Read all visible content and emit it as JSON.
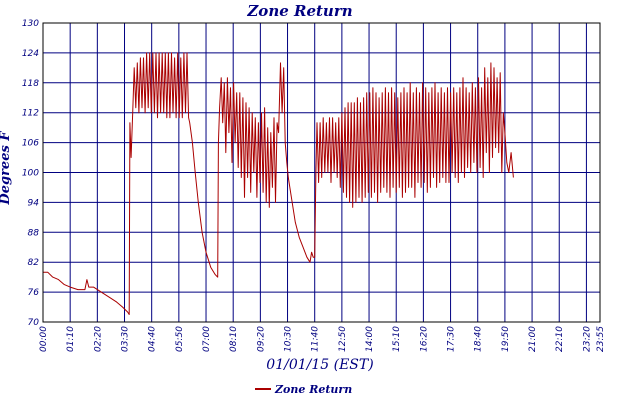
{
  "chart_data": {
    "type": "line",
    "title": "Zone Return",
    "xlabel": "01/01/15 (EST)",
    "ylabel": "Degrees F",
    "ylim": [
      70,
      130
    ],
    "xlim_minutes": [
      0,
      1435
    ],
    "y_ticks": [
      "70",
      "76",
      "82",
      "88",
      "94",
      "100",
      "106",
      "112",
      "118",
      "124",
      "130"
    ],
    "x_ticks": [
      "00:00",
      "01:10",
      "02:20",
      "03:30",
      "04:40",
      "05:50",
      "07:00",
      "08:10",
      "09:20",
      "10:30",
      "11:40",
      "12:50",
      "14:00",
      "15:10",
      "16:20",
      "17:30",
      "18:40",
      "19:50",
      "21:00",
      "22:10",
      "23:20",
      "23:55"
    ],
    "grid": true,
    "legend_position": "bottom-center",
    "series": [
      {
        "name": "Zone Return",
        "color": "#aa0000",
        "points": [
          [
            0,
            80
          ],
          [
            12,
            80
          ],
          [
            25,
            79
          ],
          [
            40,
            78.5
          ],
          [
            55,
            77.5
          ],
          [
            70,
            77
          ],
          [
            90,
            76.5
          ],
          [
            108,
            76.5
          ],
          [
            113,
            78.5
          ],
          [
            118,
            77
          ],
          [
            130,
            77
          ],
          [
            150,
            76
          ],
          [
            170,
            75
          ],
          [
            190,
            74
          ],
          [
            205,
            73
          ],
          [
            218,
            72
          ],
          [
            222,
            71.5
          ],
          [
            224,
            110
          ],
          [
            227,
            103
          ],
          [
            231,
            112
          ],
          [
            235,
            121
          ],
          [
            239,
            113
          ],
          [
            243,
            122
          ],
          [
            247,
            112
          ],
          [
            251,
            123
          ],
          [
            255,
            113
          ],
          [
            259,
            123
          ],
          [
            263,
            112
          ],
          [
            267,
            124
          ],
          [
            271,
            113
          ],
          [
            275,
            124
          ],
          [
            279,
            112
          ],
          [
            283,
            124
          ],
          [
            287,
            112
          ],
          [
            291,
            124
          ],
          [
            295,
            111
          ],
          [
            299,
            124
          ],
          [
            303,
            112
          ],
          [
            307,
            124
          ],
          [
            311,
            112
          ],
          [
            315,
            124
          ],
          [
            319,
            111
          ],
          [
            323,
            124
          ],
          [
            327,
            111
          ],
          [
            331,
            124
          ],
          [
            335,
            112
          ],
          [
            339,
            123
          ],
          [
            343,
            111
          ],
          [
            347,
            124
          ],
          [
            351,
            111
          ],
          [
            355,
            123
          ],
          [
            359,
            111
          ],
          [
            363,
            124
          ],
          [
            367,
            112
          ],
          [
            371,
            124
          ],
          [
            375,
            111
          ],
          [
            378,
            110
          ],
          [
            385,
            106
          ],
          [
            392,
            100
          ],
          [
            400,
            94
          ],
          [
            410,
            88
          ],
          [
            420,
            84
          ],
          [
            432,
            81
          ],
          [
            444,
            79.5
          ],
          [
            450,
            79
          ],
          [
            452,
            106
          ],
          [
            455,
            113
          ],
          [
            459,
            119
          ],
          [
            463,
            110
          ],
          [
            467,
            118
          ],
          [
            471,
            104
          ],
          [
            475,
            119
          ],
          [
            479,
            108
          ],
          [
            483,
            117
          ],
          [
            487,
            102
          ],
          [
            491,
            118
          ],
          [
            495,
            106
          ],
          [
            499,
            116
          ],
          [
            503,
            101
          ],
          [
            507,
            116
          ],
          [
            511,
            99
          ],
          [
            515,
            115
          ],
          [
            519,
            95
          ],
          [
            523,
            114
          ],
          [
            527,
            99
          ],
          [
            531,
            113
          ],
          [
            535,
            96
          ],
          [
            539,
            112
          ],
          [
            543,
            100
          ],
          [
            547,
            111
          ],
          [
            551,
            95
          ],
          [
            555,
            110
          ],
          [
            559,
            98
          ],
          [
            563,
            112
          ],
          [
            567,
            96
          ],
          [
            571,
            113
          ],
          [
            575,
            94
          ],
          [
            579,
            109
          ],
          [
            583,
            93
          ],
          [
            587,
            108
          ],
          [
            591,
            97
          ],
          [
            595,
            111
          ],
          [
            599,
            94
          ],
          [
            603,
            110
          ],
          [
            607,
            108
          ],
          [
            612,
            122
          ],
          [
            616,
            112
          ],
          [
            620,
            121
          ],
          [
            624,
            106
          ],
          [
            628,
            102
          ],
          [
            632,
            99
          ],
          [
            640,
            95
          ],
          [
            650,
            90
          ],
          [
            660,
            87
          ],
          [
            670,
            85
          ],
          [
            680,
            83
          ],
          [
            688,
            82
          ],
          [
            692,
            84
          ],
          [
            696,
            83
          ],
          [
            700,
            83
          ],
          [
            703,
            100
          ],
          [
            706,
            110
          ],
          [
            710,
            98
          ],
          [
            714,
            110
          ],
          [
            718,
            99
          ],
          [
            722,
            111
          ],
          [
            726,
            100
          ],
          [
            730,
            110
          ],
          [
            734,
            100
          ],
          [
            738,
            111
          ],
          [
            742,
            98
          ],
          [
            746,
            111
          ],
          [
            750,
            100
          ],
          [
            754,
            110
          ],
          [
            758,
            99
          ],
          [
            762,
            111
          ],
          [
            766,
            97
          ],
          [
            770,
            112
          ],
          [
            774,
            96
          ],
          [
            778,
            113
          ],
          [
            782,
            95
          ],
          [
            786,
            114
          ],
          [
            790,
            94
          ],
          [
            794,
            114
          ],
          [
            798,
            93
          ],
          [
            802,
            114
          ],
          [
            806,
            94
          ],
          [
            810,
            115
          ],
          [
            814,
            95
          ],
          [
            818,
            114
          ],
          [
            822,
            94
          ],
          [
            826,
            115
          ],
          [
            830,
            95
          ],
          [
            834,
            116
          ],
          [
            838,
            96
          ],
          [
            842,
            116
          ],
          [
            846,
            95
          ],
          [
            850,
            117
          ],
          [
            854,
            96
          ],
          [
            858,
            116
          ],
          [
            862,
            94
          ],
          [
            866,
            115
          ],
          [
            870,
            96
          ],
          [
            874,
            116
          ],
          [
            878,
            97
          ],
          [
            882,
            117
          ],
          [
            886,
            96
          ],
          [
            890,
            116
          ],
          [
            894,
            95
          ],
          [
            898,
            117
          ],
          [
            902,
            97
          ],
          [
            906,
            116
          ],
          [
            910,
            96
          ],
          [
            914,
            115
          ],
          [
            918,
            97
          ],
          [
            922,
            116
          ],
          [
            926,
            95
          ],
          [
            930,
            117
          ],
          [
            934,
            96
          ],
          [
            938,
            116
          ],
          [
            942,
            97
          ],
          [
            946,
            118
          ],
          [
            950,
            97
          ],
          [
            954,
            116
          ],
          [
            958,
            95
          ],
          [
            962,
            117
          ],
          [
            966,
            98
          ],
          [
            970,
            116
          ],
          [
            974,
            97
          ],
          [
            978,
            118
          ],
          [
            982,
            98
          ],
          [
            986,
            117
          ],
          [
            990,
            96
          ],
          [
            994,
            116
          ],
          [
            998,
            97
          ],
          [
            1002,
            117
          ],
          [
            1006,
            99
          ],
          [
            1010,
            118
          ],
          [
            1014,
            97
          ],
          [
            1018,
            116
          ],
          [
            1022,
            98
          ],
          [
            1026,
            117
          ],
          [
            1030,
            99
          ],
          [
            1034,
            116
          ],
          [
            1038,
            98
          ],
          [
            1042,
            117
          ],
          [
            1046,
            98
          ],
          [
            1050,
            116
          ],
          [
            1054,
            100
          ],
          [
            1058,
            117
          ],
          [
            1062,
            99
          ],
          [
            1066,
            116
          ],
          [
            1070,
            98
          ],
          [
            1074,
            117
          ],
          [
            1078,
            100
          ],
          [
            1082,
            119
          ],
          [
            1086,
            99
          ],
          [
            1090,
            117
          ],
          [
            1094,
            101
          ],
          [
            1098,
            116
          ],
          [
            1102,
            100
          ],
          [
            1106,
            118
          ],
          [
            1110,
            102
          ],
          [
            1114,
            117
          ],
          [
            1118,
            100
          ],
          [
            1122,
            119
          ],
          [
            1126,
            101
          ],
          [
            1130,
            117
          ],
          [
            1134,
            99
          ],
          [
            1138,
            121
          ],
          [
            1142,
            104
          ],
          [
            1146,
            119
          ],
          [
            1150,
            100
          ],
          [
            1154,
            122
          ],
          [
            1158,
            103
          ],
          [
            1162,
            121
          ],
          [
            1166,
            105
          ],
          [
            1170,
            119
          ],
          [
            1174,
            104
          ],
          [
            1178,
            120
          ],
          [
            1182,
            100
          ],
          [
            1186,
            112
          ],
          [
            1190,
            108
          ],
          [
            1195,
            102
          ],
          [
            1200,
            100
          ],
          [
            1206,
            104
          ],
          [
            1212,
            99
          ]
        ]
      }
    ]
  }
}
